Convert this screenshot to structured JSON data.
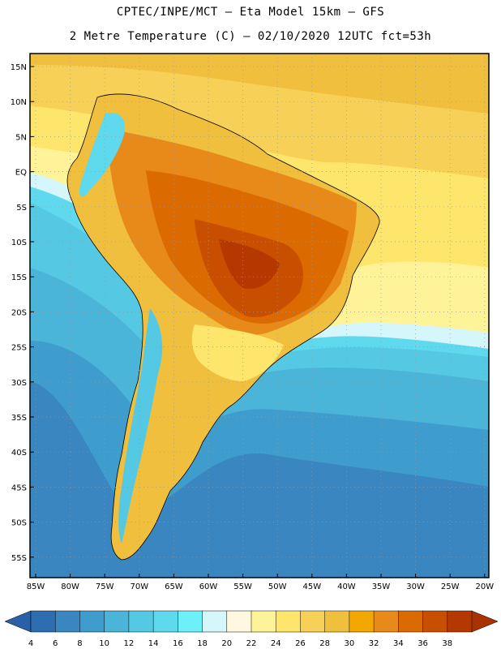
{
  "title_line1": "CPTEC/INPE/MCT –  Eta Model 15km – GFS",
  "title_line2": "2 Metre Temperature (C) – 02/10/2020 12UTC fct=53h",
  "lat_ticks": [
    "15N",
    "10N",
    "5N",
    "EQ",
    "5S",
    "10S",
    "15S",
    "20S",
    "25S",
    "30S",
    "35S",
    "40S",
    "45S",
    "50S",
    "55S"
  ],
  "lon_ticks": [
    "85W",
    "80W",
    "75W",
    "70W",
    "65W",
    "60W",
    "55W",
    "50W",
    "45W",
    "40W",
    "35W",
    "30W",
    "25W",
    "20W"
  ],
  "colorbar": {
    "labels": [
      "4",
      "6",
      "8",
      "10",
      "12",
      "14",
      "16",
      "18",
      "20",
      "22",
      "24",
      "26",
      "28",
      "30",
      "32",
      "34",
      "36",
      "38"
    ],
    "colors": [
      "#2c6eb0",
      "#3a86c0",
      "#3f9dcd",
      "#4bb4d9",
      "#55c8e4",
      "#5ed9ee",
      "#6ef0fb",
      "#d5f6fb",
      "#fff8e0",
      "#fff399",
      "#fde66b",
      "#f7d157",
      "#efbf3d",
      "#f2a800",
      "#e88a1a",
      "#db6b00",
      "#c94f00",
      "#b53800"
    ],
    "left_arrow_color": "#2a60a8",
    "right_arrow_color": "#a83200"
  }
}
